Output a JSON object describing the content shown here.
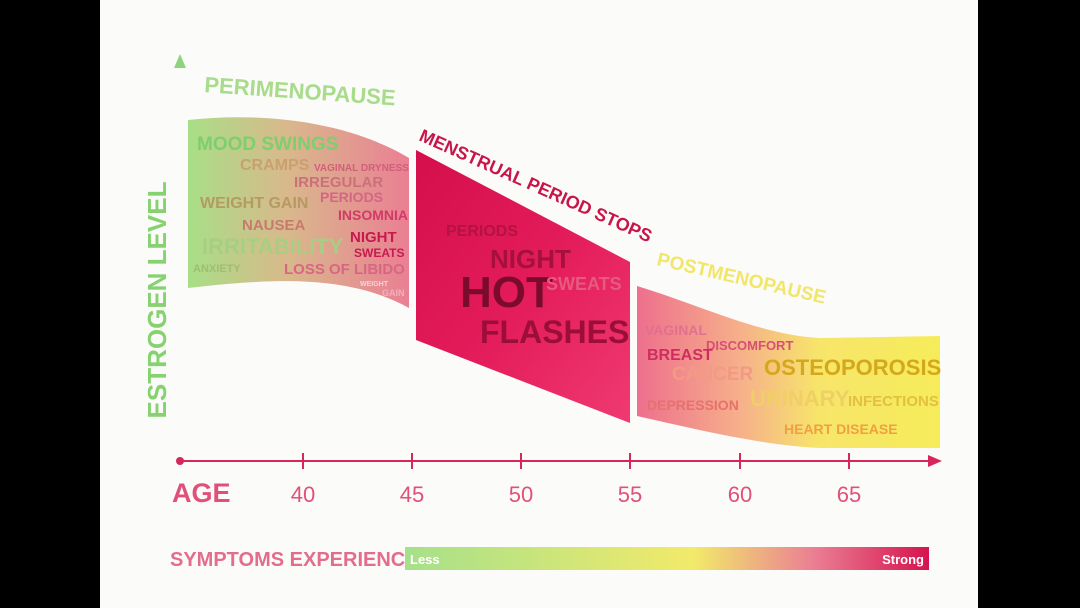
{
  "y_axis_label": "ESTROGEN LEVEL",
  "x_axis_label": "AGE",
  "x_ticks": [
    "40",
    "45",
    "50",
    "55",
    "60",
    "65"
  ],
  "phases": {
    "perimenopause": "PERIMENOPAUSE",
    "menstrual_period_stops": "MENSTRUAL PERIOD STOPS",
    "postmenopause": "POSTMENOPAUSE"
  },
  "symptoms": {
    "perimenopause": {
      "mood_swings": "MOOD SWINGS",
      "cramps": "CRAMPS",
      "vaginal_dryness": "VAGINAL DRYNESS",
      "irregular": "IRREGULAR",
      "periods": "PERIODS",
      "weight_gain": "WEIGHT GAIN",
      "insomnia": "INSOMNIA",
      "nausea": "NAUSEA",
      "irritability": "IRRITABILITY",
      "night": "NIGHT",
      "sweats": "SWEATS",
      "anxiety": "ANXIETY",
      "loss_of_libido": "LOSS OF LIBIDO",
      "weight": "WEIGHT",
      "gain": "GAIN"
    },
    "menstrual": {
      "periods": "PERIODS",
      "night": "NIGHT",
      "hot": "HOT",
      "sweats": "SWEATS",
      "flashes": "FLASHES"
    },
    "postmenopause": {
      "vaginal": "VAGINAL",
      "discomfort": "DISCOMFORT",
      "breast": "BREAST",
      "cancer": "CANCER",
      "osteoporosis": "OSTEOPOROSIS",
      "depression": "DEPRESSION",
      "urinary": "URINARY",
      "infections": "INFECTIONS",
      "heart_disease": "HEART DISEASE"
    }
  },
  "legend": {
    "title": "SYMPTOMS EXPERIENCE",
    "low": "Less",
    "high": "Strong",
    "colors": [
      "#a6e08a",
      "#f2ea6a",
      "#d6134f"
    ]
  },
  "colors": {
    "green": "#8ad67a",
    "axis_red": "#d6265b",
    "magenta": "#d6134f",
    "yellow": "#f4eb62"
  }
}
